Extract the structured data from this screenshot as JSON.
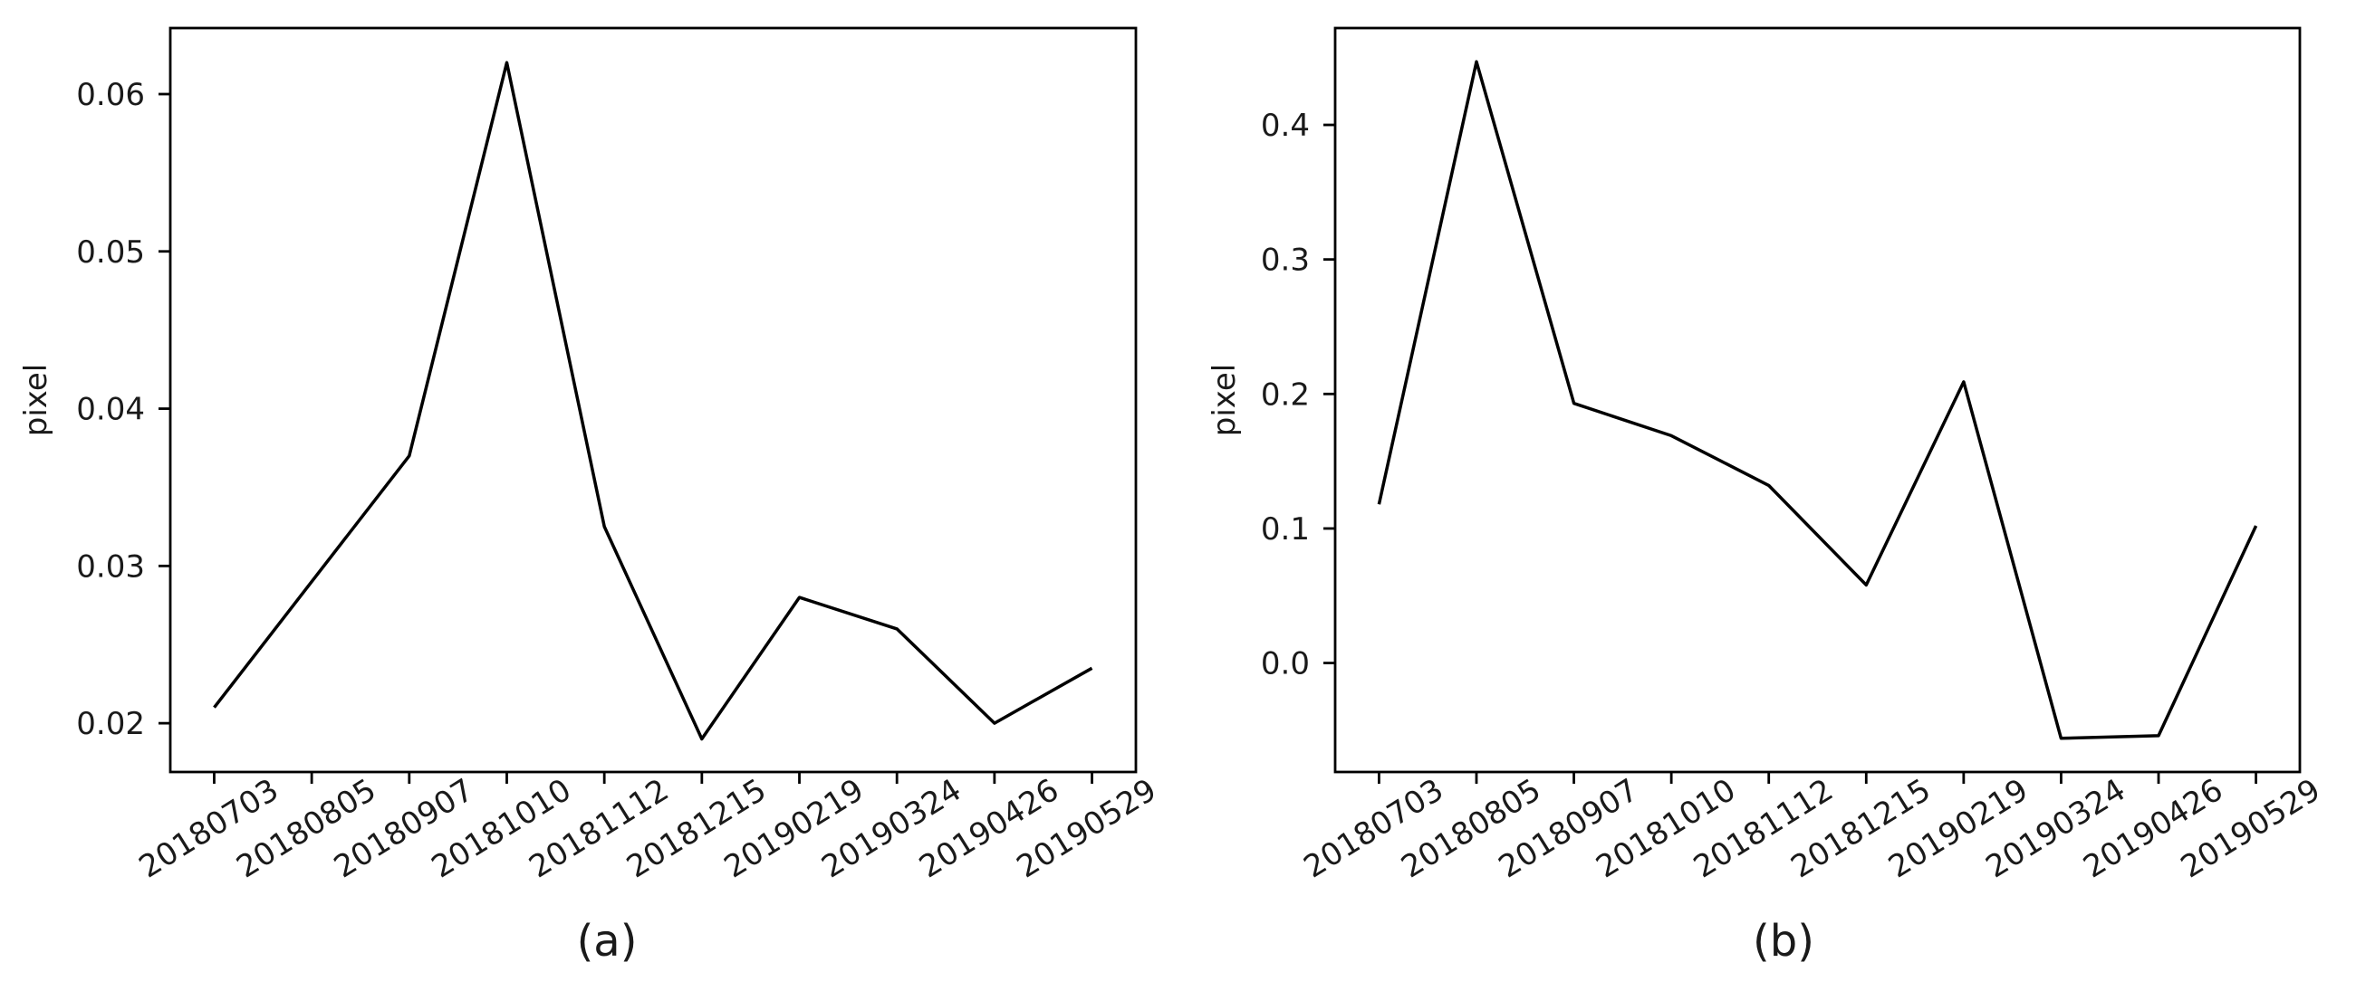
{
  "figure": {
    "background_color": "#ffffff",
    "line_color": "#000000",
    "text_color": "#1a1a1a"
  },
  "chart_data": [
    {
      "type": "line",
      "caption": "(a)",
      "title": "",
      "xlabel": "",
      "ylabel": "pixel",
      "grid": false,
      "legend": "none",
      "line_color": "#000000",
      "categories": [
        "20180703",
        "20180805",
        "20180907",
        "20181010",
        "20181112",
        "20181215",
        "20190219",
        "20190324",
        "20190426",
        "20190529"
      ],
      "values": [
        0.021,
        0.029,
        0.037,
        0.062,
        0.0325,
        0.019,
        0.028,
        0.026,
        0.02,
        0.0235
      ],
      "yticks": [
        0.02,
        0.03,
        0.04,
        0.05,
        0.06
      ],
      "ytick_labels": [
        "0.02",
        "0.03",
        "0.04",
        "0.05",
        "0.06"
      ],
      "ylim": [
        0.0169,
        0.0642
      ],
      "x_tick_rotation_deg": 32
    },
    {
      "type": "line",
      "caption": "(b)",
      "title": "",
      "xlabel": "",
      "ylabel": "pixel",
      "grid": false,
      "legend": "none",
      "line_color": "#000000",
      "categories": [
        "20180703",
        "20180805",
        "20180907",
        "20181010",
        "20181112",
        "20181215",
        "20190219",
        "20190324",
        "20190426",
        "20190529"
      ],
      "values": [
        0.118,
        0.447,
        0.193,
        0.169,
        0.132,
        0.058,
        0.209,
        -0.056,
        -0.054,
        0.102
      ],
      "yticks": [
        0.0,
        0.1,
        0.2,
        0.3,
        0.4
      ],
      "ytick_labels": [
        "0.0",
        "0.1",
        "0.2",
        "0.3",
        "0.4"
      ],
      "ylim": [
        -0.081,
        0.472
      ],
      "x_tick_rotation_deg": 32
    }
  ]
}
